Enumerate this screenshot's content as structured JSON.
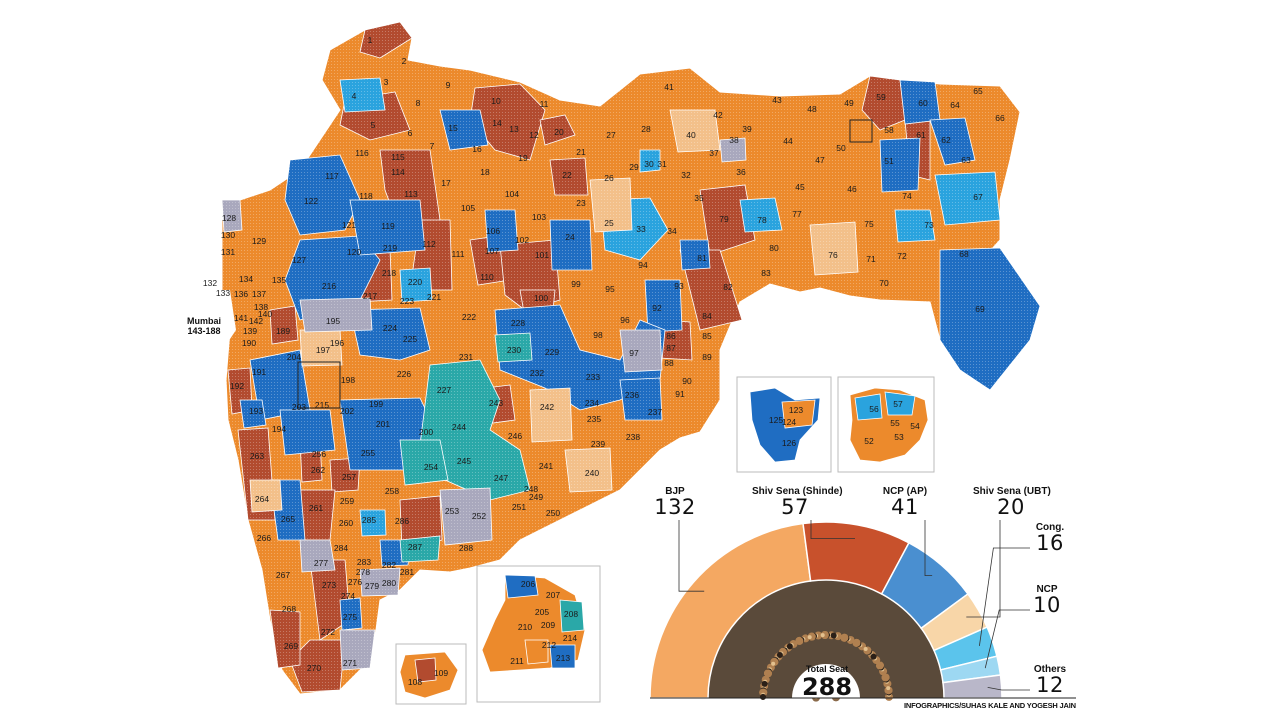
{
  "map": {
    "mumbai_label_line1": "Mumbai",
    "mumbai_label_line2": "143-188",
    "constituency_numbers": [
      "1",
      "2",
      "3",
      "4",
      "5",
      "6",
      "7",
      "8",
      "9",
      "10",
      "11",
      "12",
      "13",
      "14",
      "15",
      "16",
      "17",
      "18",
      "19",
      "20",
      "21",
      "22",
      "23",
      "24",
      "25",
      "26",
      "27",
      "28",
      "29",
      "30",
      "31",
      "32",
      "33",
      "34",
      "35",
      "36",
      "37",
      "38",
      "39",
      "40",
      "41",
      "42",
      "43",
      "44",
      "45",
      "46",
      "47",
      "48",
      "49",
      "50",
      "51",
      "52",
      "53",
      "54",
      "55",
      "56",
      "57",
      "58",
      "59",
      "60",
      "61",
      "62",
      "63",
      "64",
      "65",
      "66",
      "67",
      "68",
      "69",
      "70",
      "71",
      "72",
      "73",
      "74",
      "75",
      "76",
      "77",
      "78",
      "79",
      "80",
      "81",
      "82",
      "83",
      "84",
      "85",
      "86",
      "87",
      "88",
      "89",
      "90",
      "91",
      "92",
      "93",
      "94",
      "95",
      "96",
      "97",
      "98",
      "99",
      "100",
      "101",
      "102",
      "103",
      "104",
      "105",
      "106",
      "107",
      "108",
      "109",
      "110",
      "111",
      "112",
      "113",
      "114",
      "115",
      "116",
      "117",
      "118",
      "119",
      "120",
      "121",
      "122",
      "123",
      "124",
      "125",
      "126",
      "127",
      "128",
      "129",
      "130",
      "131",
      "132",
      "133",
      "134",
      "135",
      "136",
      "137",
      "138",
      "139",
      "140",
      "141",
      "142",
      "189",
      "190",
      "191",
      "192",
      "193",
      "194",
      "195",
      "196",
      "197",
      "198",
      "199",
      "200",
      "201",
      "202",
      "203",
      "204",
      "205",
      "206",
      "207",
      "208",
      "209",
      "210",
      "211",
      "212",
      "213",
      "214",
      "215",
      "216",
      "217",
      "218",
      "219",
      "220",
      "221",
      "222",
      "223",
      "224",
      "225",
      "226",
      "227",
      "228",
      "229",
      "230",
      "231",
      "232",
      "233",
      "234",
      "235",
      "236",
      "237",
      "238",
      "239",
      "240",
      "241",
      "242",
      "243",
      "244",
      "245",
      "246",
      "247",
      "248",
      "249",
      "250",
      "251",
      "252",
      "253",
      "254",
      "255",
      "256",
      "257",
      "258",
      "259",
      "260",
      "261",
      "262",
      "263",
      "264",
      "265",
      "266",
      "267",
      "268",
      "269",
      "270",
      "271",
      "272",
      "273",
      "274",
      "275",
      "276",
      "277",
      "278",
      "279",
      "280",
      "281",
      "282",
      "283",
      "284",
      "285",
      "286",
      "287",
      "288"
    ]
  },
  "legend": {
    "parties": [
      {
        "name": "BJP",
        "seats": "132",
        "color": "#f4a862"
      },
      {
        "name": "Shiv Sena (Shinde)",
        "seats": "57",
        "color": "#c8512c"
      },
      {
        "name": "NCP (AP)",
        "seats": "41",
        "color": "#4a8fd0"
      },
      {
        "name": "Shiv Sena (UBT)",
        "seats": "20",
        "color": "#f8d6a8"
      },
      {
        "name": "Cong.",
        "seats": "16",
        "color": "#5bc4ec"
      },
      {
        "name": "NCP",
        "seats": "10",
        "color": "#9dd8f2"
      },
      {
        "name": "Others",
        "seats": "12",
        "color": "#b9b7c9"
      }
    ],
    "total_label": "Total Seat",
    "total_value": "288",
    "credit": "INFOGRAPHICS/SUHAS KALE AND YOGESH JAIN"
  },
  "colors": {
    "bjp_map": "#ec8a2c",
    "shinde_map": "#b24b2f",
    "ncp_ap_map": "#1f6dc2",
    "ubt_map": "#f3c08a",
    "cong_map": "#2aa3de",
    "ncp_map": "#2aa8a8",
    "others_map": "#a9a8bd"
  }
}
